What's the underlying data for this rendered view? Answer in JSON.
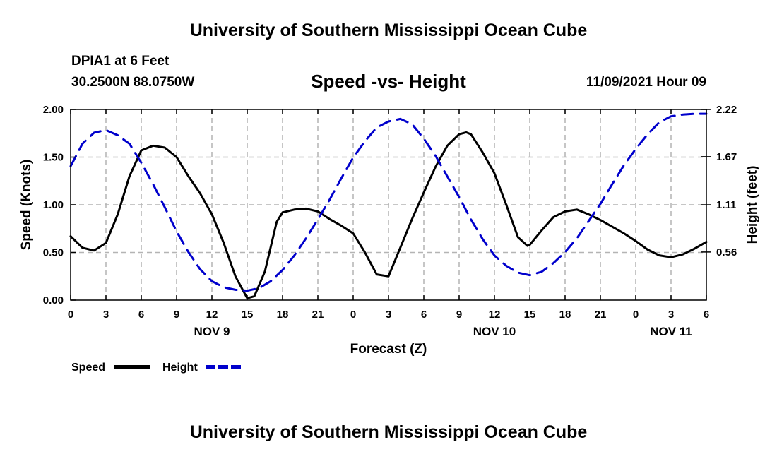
{
  "header": {
    "title": "University of Southern Mississippi Ocean Cube",
    "station": "DPIA1 at 6 Feet",
    "coords": "30.2500N  88.0750W",
    "subtitle": "Speed -vs- Height",
    "datetime": "11/09/2021 Hour 09"
  },
  "footer": {
    "title": "University of Southern Mississippi Ocean Cube"
  },
  "colors": {
    "speed": "#000000",
    "height": "#0000cc",
    "grid": "#b4b4b4"
  },
  "chart_data": {
    "type": "line",
    "title": "Speed -vs- Height",
    "xlabel": "Forecast (Z)",
    "ylabel": "Speed (Knots)",
    "y2label": "Height (feet)",
    "xlim": [
      0,
      54
    ],
    "ylim": [
      0,
      2.0
    ],
    "y2lim": [
      0,
      2.22
    ],
    "x_tick_values": [
      0,
      3,
      6,
      9,
      12,
      15,
      18,
      21,
      24,
      27,
      30,
      33,
      36,
      39,
      42,
      45,
      48,
      51,
      54
    ],
    "x_tick_labels": [
      "0",
      "3",
      "6",
      "9",
      "12",
      "15",
      "18",
      "21",
      "0",
      "3",
      "6",
      "9",
      "12",
      "15",
      "18",
      "21",
      "0",
      "3",
      "6"
    ],
    "y_ticks": [
      0.0,
      0.5,
      1.0,
      1.5,
      2.0
    ],
    "y_tick_labels": [
      "0.00",
      "0.50",
      "1.00",
      "1.50",
      "2.00"
    ],
    "y2_ticks": [
      0.56,
      1.11,
      1.67,
      2.22
    ],
    "y2_tick_labels": [
      "0.56",
      "1.11",
      "1.67",
      "2.22"
    ],
    "date_labels": [
      {
        "x": 12,
        "label": "NOV 9"
      },
      {
        "x": 36,
        "label": "NOV 10"
      },
      {
        "x": 51,
        "label": "NOV 11"
      }
    ],
    "grid": true,
    "legend_position": "bottom-left",
    "series": [
      {
        "name": "Speed",
        "axis": "left",
        "style": "solid",
        "points": [
          [
            0,
            0.67
          ],
          [
            1,
            0.55
          ],
          [
            2,
            0.52
          ],
          [
            3,
            0.6
          ],
          [
            4,
            0.9
          ],
          [
            5,
            1.3
          ],
          [
            6,
            1.57
          ],
          [
            7,
            1.62
          ],
          [
            8,
            1.6
          ],
          [
            9,
            1.5
          ],
          [
            10,
            1.3
          ],
          [
            11,
            1.12
          ],
          [
            12,
            0.9
          ],
          [
            13,
            0.6
          ],
          [
            14,
            0.25
          ],
          [
            15,
            0.02
          ],
          [
            15.6,
            0.04
          ],
          [
            16.5,
            0.3
          ],
          [
            17.5,
            0.82
          ],
          [
            18,
            0.92
          ],
          [
            19,
            0.95
          ],
          [
            20,
            0.96
          ],
          [
            21,
            0.93
          ],
          [
            22,
            0.85
          ],
          [
            23,
            0.78
          ],
          [
            24,
            0.7
          ],
          [
            25,
            0.5
          ],
          [
            26,
            0.27
          ],
          [
            27,
            0.25
          ],
          [
            28,
            0.55
          ],
          [
            29,
            0.85
          ],
          [
            30,
            1.13
          ],
          [
            31,
            1.4
          ],
          [
            32,
            1.62
          ],
          [
            33,
            1.74
          ],
          [
            33.6,
            1.76
          ],
          [
            34,
            1.74
          ],
          [
            35,
            1.55
          ],
          [
            36,
            1.33
          ],
          [
            37,
            1.0
          ],
          [
            38,
            0.66
          ],
          [
            38.8,
            0.57
          ],
          [
            39,
            0.58
          ],
          [
            40,
            0.73
          ],
          [
            41,
            0.87
          ],
          [
            42,
            0.93
          ],
          [
            43,
            0.95
          ],
          [
            44,
            0.9
          ],
          [
            45,
            0.84
          ],
          [
            46,
            0.77
          ],
          [
            47,
            0.7
          ],
          [
            48,
            0.62
          ],
          [
            49,
            0.53
          ],
          [
            50,
            0.47
          ],
          [
            51,
            0.45
          ],
          [
            52,
            0.48
          ],
          [
            53,
            0.54
          ],
          [
            54,
            0.61
          ]
        ]
      },
      {
        "name": "Height",
        "axis": "right",
        "style": "dashed",
        "points": [
          [
            0,
            1.56
          ],
          [
            1,
            1.82
          ],
          [
            2,
            1.95
          ],
          [
            3,
            1.98
          ],
          [
            4,
            1.92
          ],
          [
            5,
            1.82
          ],
          [
            6,
            1.6
          ],
          [
            7,
            1.35
          ],
          [
            8,
            1.08
          ],
          [
            9,
            0.8
          ],
          [
            10,
            0.56
          ],
          [
            11,
            0.36
          ],
          [
            12,
            0.22
          ],
          [
            13,
            0.15
          ],
          [
            14,
            0.12
          ],
          [
            15,
            0.11
          ],
          [
            16,
            0.14
          ],
          [
            17,
            0.22
          ],
          [
            18,
            0.35
          ],
          [
            19,
            0.52
          ],
          [
            20,
            0.72
          ],
          [
            21,
            0.94
          ],
          [
            22,
            1.17
          ],
          [
            23,
            1.42
          ],
          [
            24,
            1.66
          ],
          [
            25,
            1.85
          ],
          [
            26,
            2.01
          ],
          [
            27,
            2.08
          ],
          [
            28,
            2.11
          ],
          [
            29,
            2.05
          ],
          [
            30,
            1.88
          ],
          [
            31,
            1.68
          ],
          [
            32,
            1.44
          ],
          [
            33,
            1.2
          ],
          [
            34,
            0.94
          ],
          [
            35,
            0.71
          ],
          [
            36,
            0.52
          ],
          [
            37,
            0.4
          ],
          [
            38,
            0.32
          ],
          [
            39,
            0.29
          ],
          [
            40,
            0.33
          ],
          [
            41,
            0.43
          ],
          [
            42,
            0.56
          ],
          [
            43,
            0.72
          ],
          [
            44,
            0.92
          ],
          [
            45,
            1.12
          ],
          [
            46,
            1.35
          ],
          [
            47,
            1.57
          ],
          [
            48,
            1.76
          ],
          [
            49,
            1.93
          ],
          [
            50,
            2.07
          ],
          [
            51,
            2.14
          ],
          [
            52,
            2.16
          ],
          [
            53,
            2.17
          ],
          [
            54,
            2.17
          ]
        ]
      }
    ]
  }
}
